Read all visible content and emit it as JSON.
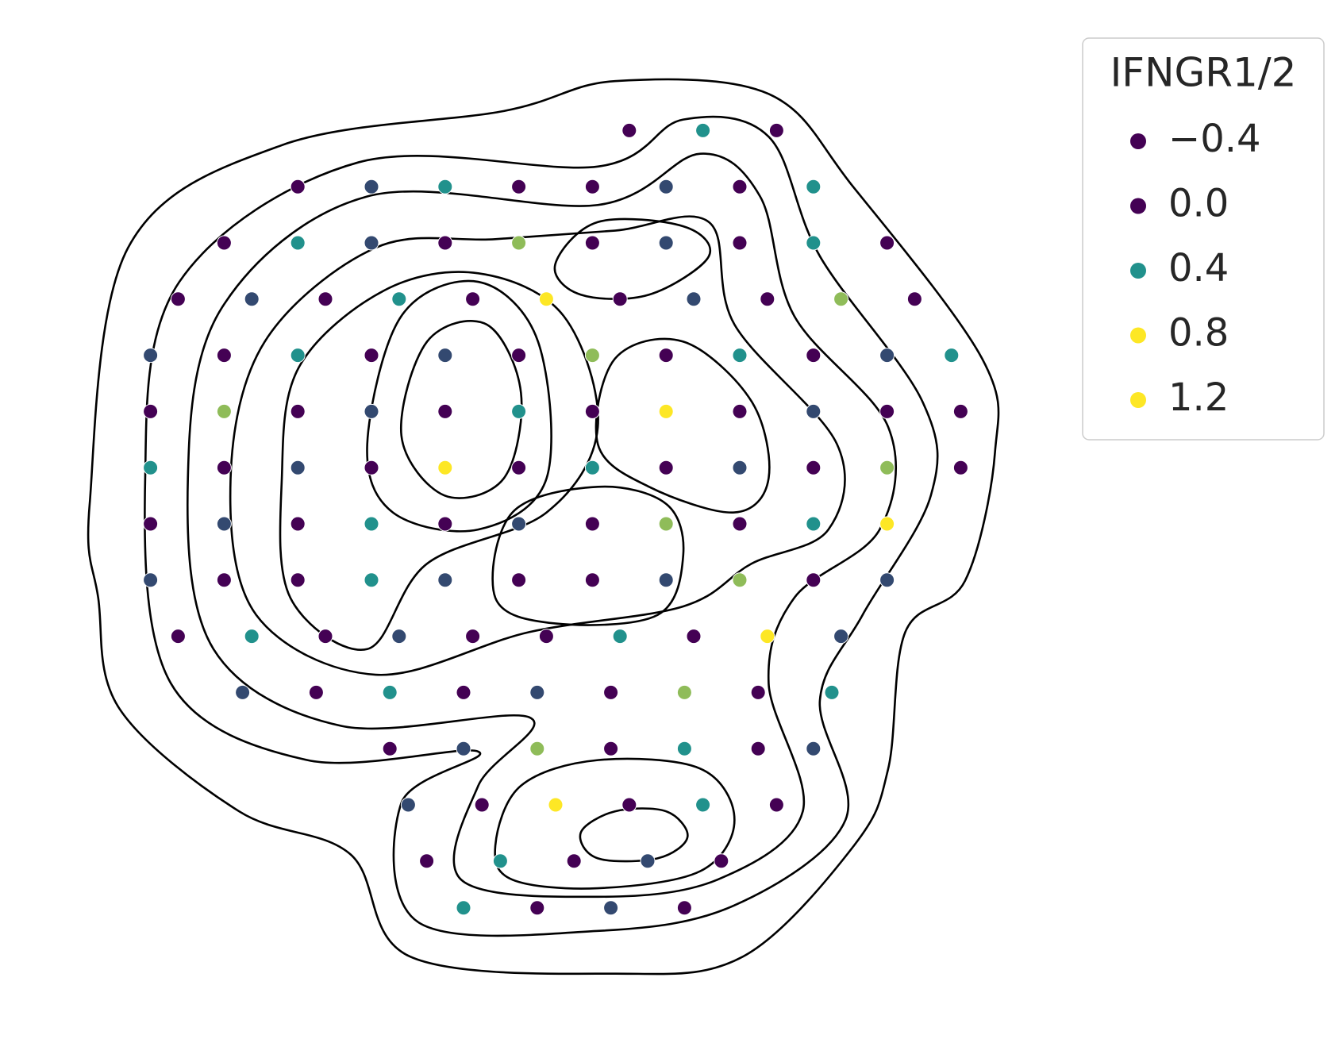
{
  "chart_data": {
    "type": "scatter",
    "x": [
      58,
      66,
      74,
      22,
      30,
      38,
      46,
      54,
      62,
      70,
      78,
      14,
      22,
      30,
      38,
      46,
      54,
      62,
      70,
      78,
      86,
      9,
      17,
      25,
      33,
      41,
      49,
      57,
      65,
      73,
      81,
      89,
      6,
      14,
      22,
      30,
      38,
      46,
      54,
      62,
      70,
      78,
      86,
      93,
      6,
      14,
      22,
      30,
      38,
      46,
      54,
      62,
      70,
      78,
      86,
      94,
      6,
      14,
      22,
      30,
      38,
      46,
      54,
      62,
      70,
      78,
      86,
      94,
      6,
      14,
      22,
      30,
      38,
      46,
      54,
      62,
      70,
      78,
      86,
      6,
      14,
      22,
      30,
      38,
      46,
      54,
      62,
      70,
      78,
      86,
      9,
      17,
      25,
      33,
      41,
      49,
      57,
      65,
      73,
      81,
      16,
      24,
      32,
      40,
      48,
      56,
      64,
      72,
      80,
      32,
      40,
      48,
      56,
      64,
      72,
      78,
      34,
      42,
      50,
      58,
      66,
      74,
      36,
      44,
      52,
      60,
      68,
      40,
      48,
      56,
      64
    ],
    "y": [
      92,
      92,
      92,
      86,
      86,
      86,
      86,
      86,
      86,
      86,
      86,
      80,
      80,
      80,
      80,
      80,
      80,
      80,
      80,
      80,
      80,
      74,
      74,
      74,
      74,
      74,
      74,
      74,
      74,
      74,
      74,
      74,
      68,
      68,
      68,
      68,
      68,
      68,
      68,
      68,
      68,
      68,
      68,
      68,
      62,
      62,
      62,
      62,
      62,
      62,
      62,
      62,
      62,
      62,
      62,
      62,
      56,
      56,
      56,
      56,
      56,
      56,
      56,
      56,
      56,
      56,
      56,
      56,
      50,
      50,
      50,
      50,
      50,
      50,
      50,
      50,
      50,
      50,
      50,
      44,
      44,
      44,
      44,
      44,
      44,
      44,
      44,
      44,
      44,
      44,
      38,
      38,
      38,
      38,
      38,
      38,
      38,
      38,
      38,
      38,
      32,
      32,
      32,
      32,
      32,
      32,
      32,
      32,
      32,
      26,
      26,
      26,
      26,
      26,
      26,
      26,
      20,
      20,
      20,
      20,
      20,
      20,
      14,
      14,
      14,
      14,
      14,
      9,
      9,
      9,
      9
    ],
    "values": [
      0,
      0.4,
      0,
      0,
      0.2,
      0.4,
      0,
      0,
      0.2,
      0,
      0.4,
      0,
      0.4,
      0.2,
      0,
      0.6,
      0,
      0.2,
      0,
      0.4,
      0,
      0,
      0.2,
      0,
      0.4,
      0,
      0.8,
      0,
      0.2,
      0,
      0.6,
      0,
      0.2,
      0,
      0.4,
      0,
      0.2,
      0,
      0.6,
      0,
      0.4,
      0,
      0.2,
      0.4,
      0,
      0.6,
      0,
      0.2,
      0,
      0.4,
      0,
      0.8,
      0,
      0.2,
      0,
      0,
      0.4,
      0,
      0.2,
      0,
      0.8,
      0,
      0.4,
      0,
      0.2,
      0,
      0.6,
      0,
      0,
      0.2,
      0,
      0.4,
      0,
      0.2,
      0,
      0.6,
      0,
      0.4,
      0.8,
      0.2,
      0,
      0,
      0.4,
      0.2,
      0,
      0,
      0.2,
      0.6,
      0,
      0.2,
      0,
      0.4,
      0,
      0.2,
      0,
      0,
      0.4,
      0,
      0.8,
      0.2,
      0.2,
      0,
      0.4,
      0,
      0.2,
      0,
      0.6,
      0,
      0.4,
      0,
      0.2,
      0.6,
      0,
      0.4,
      0,
      0.2,
      0.2,
      0,
      0.8,
      0,
      0.4,
      0,
      0,
      0.4,
      0,
      0.2,
      0,
      0.4,
      0,
      0.2,
      0
    ],
    "xlim": [
      0,
      100
    ],
    "ylim": [
      0,
      100
    ],
    "legend": {
      "title": "IFNGR1/2",
      "position": "upper right",
      "entries": [
        {
          "value": -0.4,
          "label": "−0.4",
          "color": "#440154"
        },
        {
          "value": 0,
          "label": "0.0",
          "color": "#440154"
        },
        {
          "value": 0.4,
          "label": "0.4",
          "color": "#21918c"
        },
        {
          "value": 0.8,
          "label": "0.8",
          "color": "#fde725"
        },
        {
          "value": 1.2,
          "label": "1.2",
          "color": "#fde725"
        }
      ]
    }
  }
}
